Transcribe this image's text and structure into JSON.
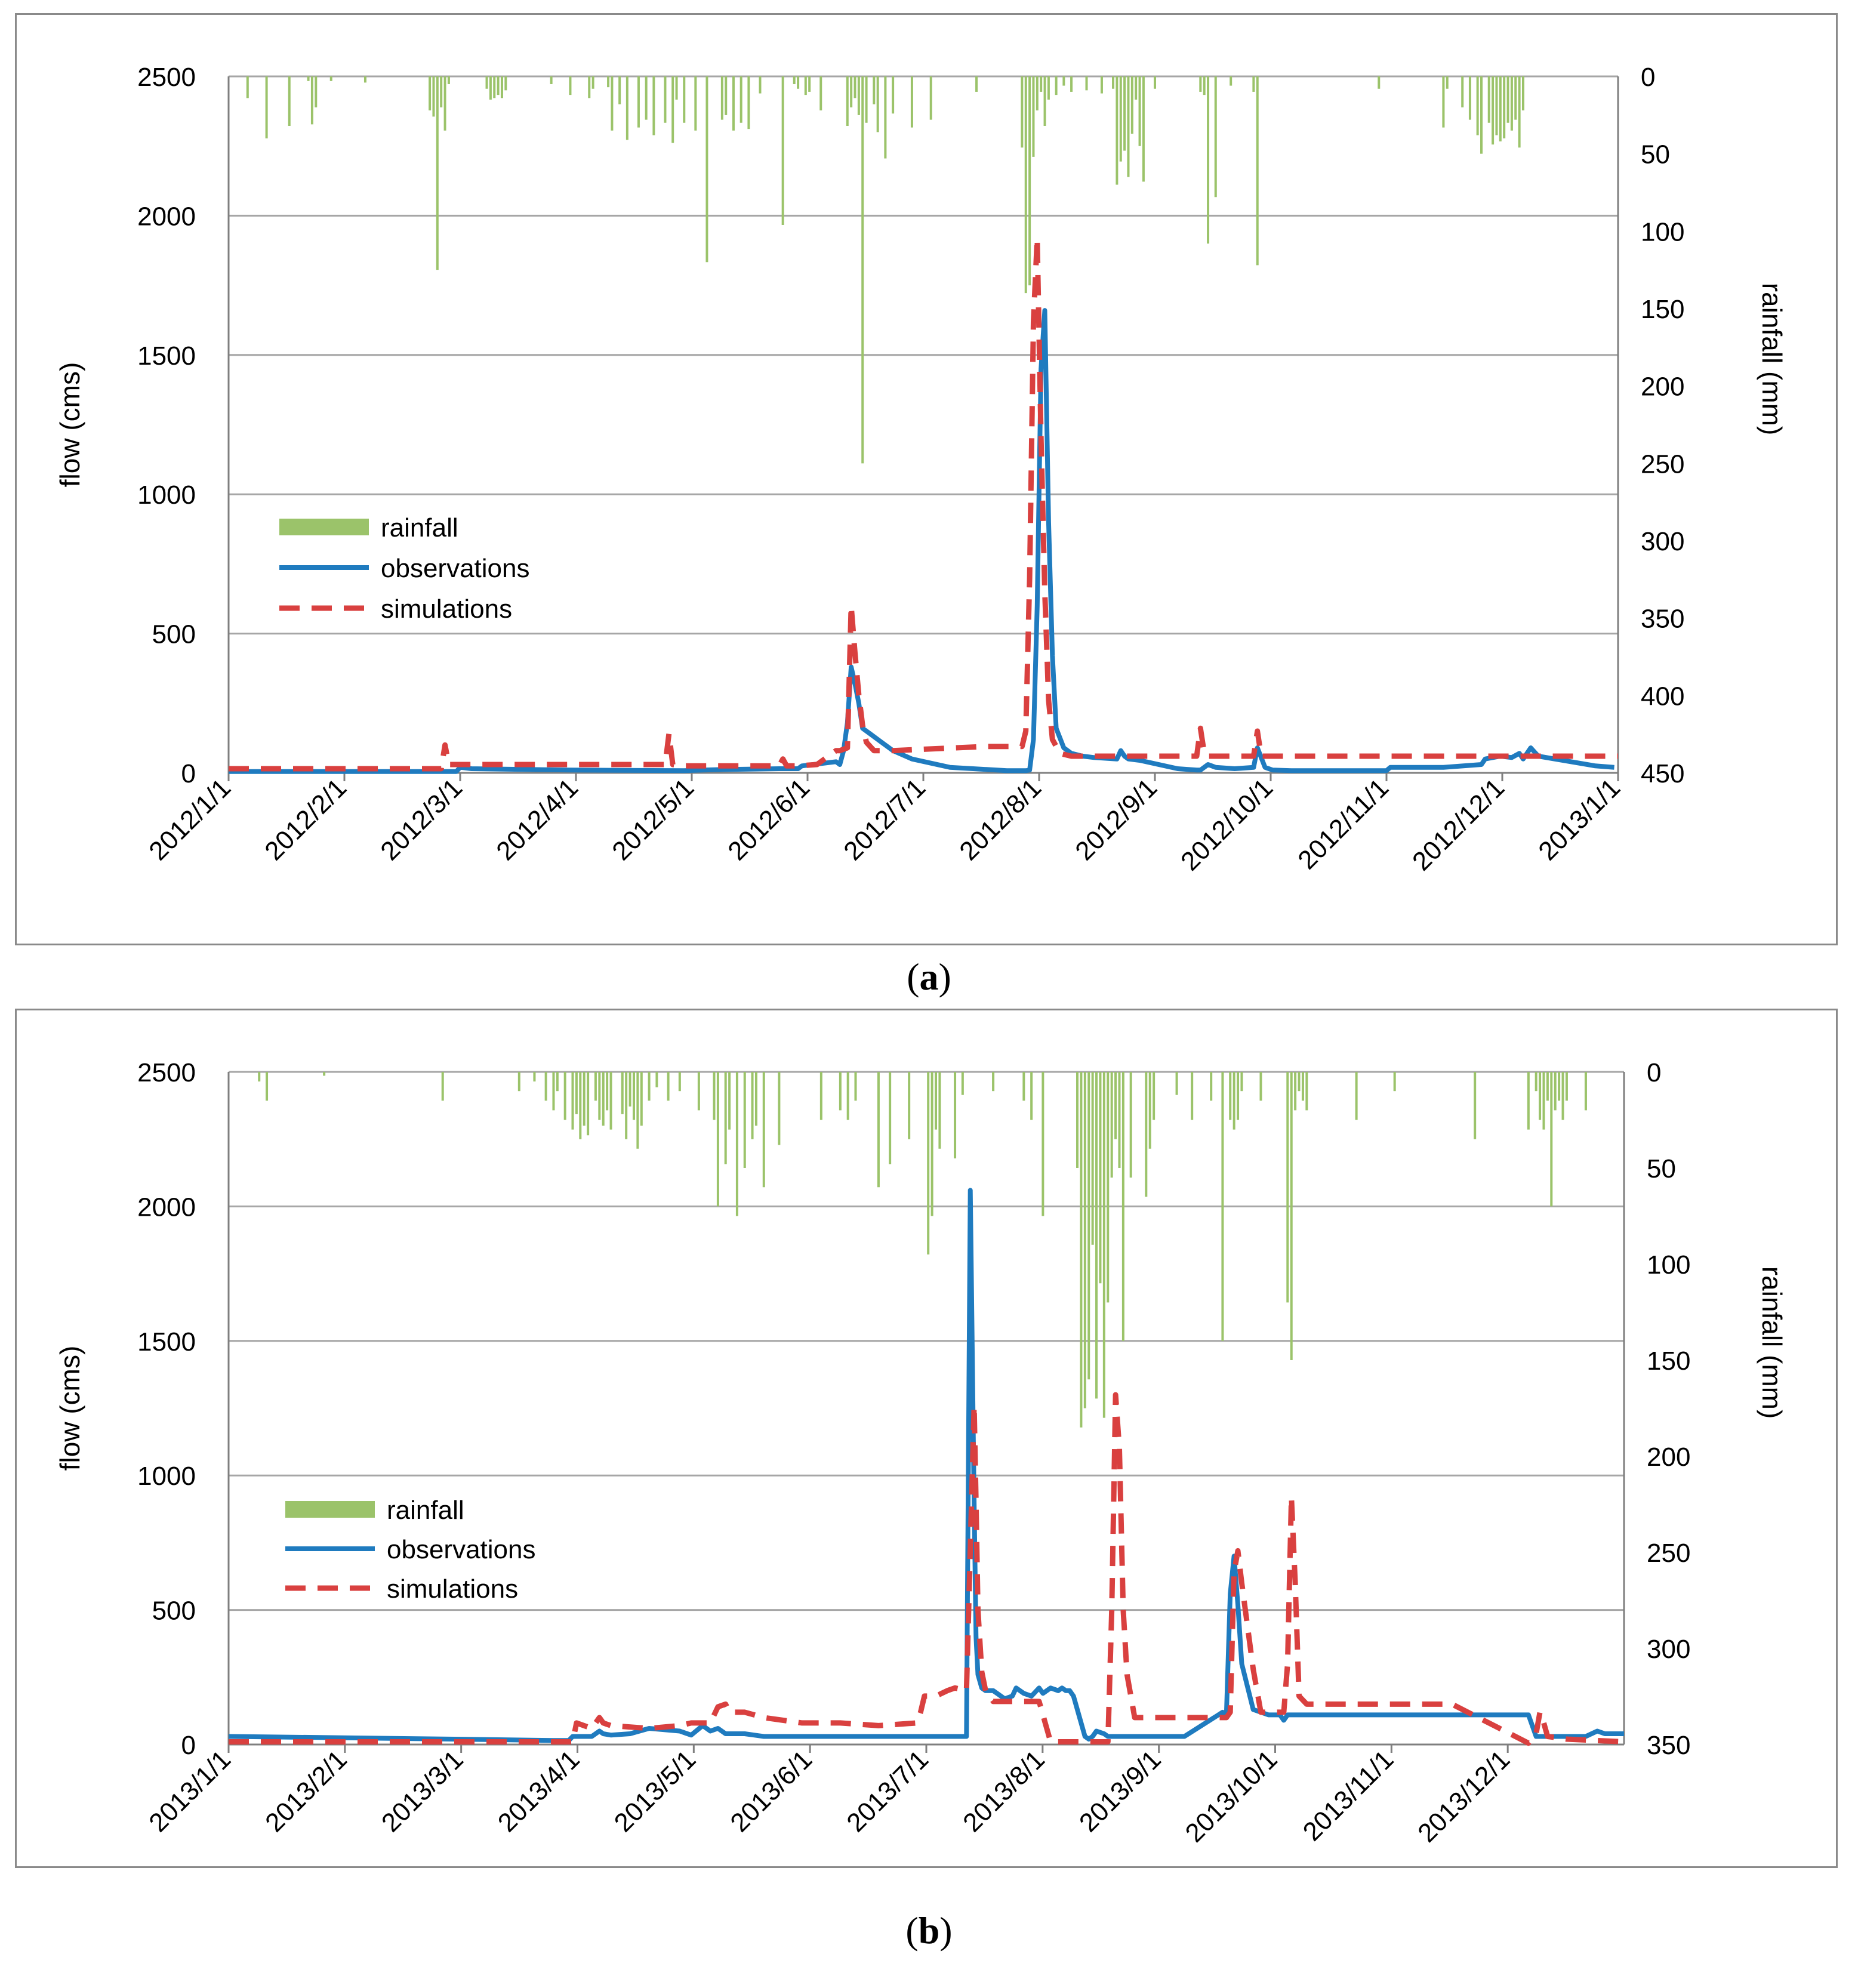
{
  "colors": {
    "rainfall": "#9bc36a",
    "observations": "#1f7bbf",
    "simulations": "#d9403f",
    "grid": "#a6a6a6",
    "axis": "#7f7f7f"
  },
  "chart_data": [
    {
      "type": "line",
      "panel": "a",
      "caption_open": "(",
      "caption_letter": "a",
      "caption_close": ")",
      "ylabel": "flow (cms)",
      "y2label": "rainfall (mm)",
      "ylim": [
        0,
        2500
      ],
      "y2lim": [
        0,
        450
      ],
      "yticks": [
        "0",
        "500",
        "1000",
        "1500",
        "2000",
        "2500"
      ],
      "y2ticks": [
        "0",
        "50",
        "100",
        "150",
        "200",
        "250",
        "300",
        "350",
        "400",
        "450"
      ],
      "xlim_days": [
        0,
        366
      ],
      "xticks": [
        "2012/1/1",
        "2012/2/1",
        "2012/3/1",
        "2012/4/1",
        "2012/5/1",
        "2012/6/1",
        "2012/7/1",
        "2012/8/1",
        "2012/9/1",
        "2012/10/1",
        "2012/11/1",
        "2012/12/1",
        "2013/1/1"
      ],
      "legend": [
        "rainfall",
        "observations",
        "simulations"
      ],
      "legend_position": "middle-left",
      "rainfall": {
        "day": [
          5,
          10,
          16,
          21,
          22,
          23,
          27,
          36,
          53,
          54,
          55,
          56,
          57,
          58,
          68,
          69,
          70,
          71,
          72,
          73,
          85,
          90,
          95,
          96,
          100,
          101,
          103,
          105,
          108,
          110,
          112,
          115,
          117,
          118,
          120,
          123,
          126,
          130,
          131,
          133,
          135,
          137,
          140,
          146,
          149,
          150,
          152,
          153,
          156,
          163,
          164,
          165,
          166,
          167,
          168,
          170,
          171,
          173,
          175,
          180,
          185,
          197,
          209,
          210,
          211,
          212,
          213,
          214,
          215,
          216,
          218,
          220,
          222,
          226,
          230,
          233,
          234,
          235,
          236,
          237,
          238,
          239,
          240,
          241,
          244,
          256,
          257,
          258,
          260,
          264,
          270,
          271,
          303,
          320,
          321,
          325,
          327,
          329,
          330,
          332,
          333,
          334,
          335,
          336,
          337,
          338,
          339,
          340,
          341
        ],
        "mm": [
          14,
          40,
          32,
          3,
          31,
          20,
          3,
          4,
          22,
          26,
          125,
          20,
          35,
          5,
          8,
          15,
          14,
          12,
          14,
          9,
          5,
          12,
          14,
          8,
          7,
          35,
          18,
          41,
          33,
          28,
          38,
          30,
          43,
          15,
          30,
          35,
          120,
          28,
          25,
          35,
          30,
          34,
          11,
          96,
          5,
          8,
          12,
          10,
          22,
          32,
          20,
          14,
          25,
          250,
          30,
          18,
          36,
          53,
          24,
          33,
          28,
          10,
          46,
          140,
          135,
          52,
          22,
          10,
          32,
          15,
          12,
          6,
          10,
          9,
          11,
          8,
          70,
          55,
          48,
          65,
          37,
          15,
          45,
          68,
          8,
          10,
          12,
          108,
          78,
          6,
          10,
          122,
          8,
          33,
          8,
          20,
          28,
          38,
          50,
          30,
          44,
          38,
          42,
          40,
          30,
          35,
          28,
          46,
          22
        ],
        "note": "bars hang down from the top axis (inverted rainfall scale)"
      },
      "series": [
        {
          "name": "observations",
          "x": [
            0,
            30,
            60,
            61,
            64,
            90,
            120,
            125,
            130,
            145,
            150,
            151,
            160,
            161,
            162,
            163,
            164,
            165,
            166,
            167,
            169,
            172,
            175,
            180,
            190,
            205,
            210,
            211,
            212,
            213,
            214,
            215,
            216,
            217,
            218,
            220,
            222,
            225,
            228,
            234,
            235,
            236,
            237,
            240,
            245,
            250,
            255,
            256,
            258,
            260,
            265,
            270,
            271,
            273,
            275,
            280,
            300,
            305,
            306,
            320,
            330,
            331,
            335,
            338,
            340,
            341,
            343,
            345,
            360,
            365
          ],
          "y": [
            5,
            5,
            5,
            20,
            15,
            10,
            8,
            10,
            12,
            15,
            15,
            25,
            40,
            30,
            80,
            180,
            380,
            320,
            250,
            160,
            140,
            110,
            80,
            50,
            20,
            8,
            8,
            10,
            120,
            600,
            1450,
            1660,
            900,
            420,
            160,
            90,
            70,
            60,
            55,
            50,
            80,
            60,
            50,
            45,
            30,
            15,
            10,
            10,
            30,
            20,
            15,
            20,
            90,
            20,
            10,
            8,
            8,
            8,
            20,
            20,
            30,
            50,
            60,
            55,
            70,
            50,
            90,
            60,
            25,
            20
          ]
        },
        {
          "name": "simulations",
          "x": [
            0,
            30,
            56,
            57,
            58,
            60,
            90,
            115,
            116,
            117,
            120,
            145,
            146,
            147,
            150,
            155,
            160,
            161,
            163,
            164,
            165,
            166,
            167,
            168,
            170,
            175,
            200,
            209,
            210,
            211,
            212,
            213,
            214,
            215,
            216,
            217,
            219,
            222,
            232,
            240,
            255,
            256,
            257,
            258,
            260,
            270,
            271,
            272,
            274,
            290,
            300,
            320,
            330,
            340,
            345,
            366
          ],
          "y": [
            15,
            15,
            15,
            100,
            30,
            30,
            30,
            30,
            140,
            30,
            25,
            25,
            50,
            25,
            25,
            30,
            80,
            80,
            90,
            600,
            430,
            280,
            170,
            110,
            80,
            80,
            95,
            95,
            150,
            700,
            1620,
            1920,
            1200,
            650,
            260,
            120,
            70,
            60,
            60,
            60,
            60,
            160,
            70,
            60,
            60,
            60,
            150,
            60,
            60,
            60,
            60,
            60,
            60,
            60,
            60,
            60
          ]
        }
      ]
    },
    {
      "type": "line",
      "panel": "b",
      "caption_open": "(",
      "caption_letter": "b",
      "caption_close": ")",
      "ylabel": "flow (cms)",
      "y2label": "rainfall (mm)",
      "ylim": [
        0,
        2500
      ],
      "y2lim": [
        0,
        350
      ],
      "yticks": [
        "0",
        "500",
        "1000",
        "1500",
        "2000",
        "2500"
      ],
      "y2ticks": [
        "0",
        "50",
        "100",
        "150",
        "200",
        "250",
        "300",
        "350"
      ],
      "xlim_days": [
        0,
        365
      ],
      "xticks": [
        "2013/1/1",
        "2013/2/1",
        "2013/3/1",
        "2013/4/1",
        "2013/5/1",
        "2013/6/1",
        "2013/7/1",
        "2013/8/1",
        "2013/9/1",
        "2013/10/1",
        "2013/11/1",
        "2013/12/1"
      ],
      "legend": [
        "rainfall",
        "observations",
        "simulations"
      ],
      "legend_position": "middle-left",
      "rainfall": {
        "day": [
          8,
          10,
          25,
          56,
          76,
          80,
          83,
          85,
          86,
          88,
          90,
          91,
          92,
          93,
          94,
          96,
          97,
          98,
          99,
          100,
          103,
          104,
          105,
          106,
          107,
          108,
          110,
          112,
          115,
          118,
          123,
          127,
          128,
          130,
          131,
          133,
          135,
          137,
          138,
          140,
          144,
          155,
          160,
          162,
          164,
          170,
          173,
          178,
          183,
          184,
          185,
          186,
          190,
          192,
          200,
          208,
          210,
          213,
          222,
          223,
          224,
          225,
          226,
          227,
          228,
          229,
          230,
          231,
          232,
          233,
          234,
          236,
          240,
          241,
          242,
          248,
          252,
          257,
          260,
          262,
          263,
          264,
          265,
          270,
          277,
          278,
          279,
          280,
          281,
          282,
          295,
          305,
          326,
          340,
          342,
          343,
          344,
          345,
          346,
          347,
          348,
          349,
          350,
          355
        ],
        "mm": [
          5,
          15,
          2,
          15,
          10,
          5,
          15,
          20,
          10,
          25,
          30,
          22,
          35,
          28,
          33,
          15,
          25,
          28,
          20,
          30,
          22,
          35,
          18,
          25,
          40,
          28,
          15,
          8,
          15,
          10,
          20,
          25,
          70,
          48,
          30,
          75,
          50,
          35,
          28,
          60,
          38,
          25,
          20,
          25,
          15,
          60,
          48,
          35,
          95,
          75,
          30,
          40,
          45,
          12,
          10,
          15,
          25,
          75,
          50,
          185,
          175,
          160,
          90,
          170,
          110,
          180,
          120,
          55,
          35,
          50,
          140,
          55,
          65,
          40,
          25,
          12,
          25,
          15,
          140,
          25,
          30,
          25,
          10,
          15,
          120,
          150,
          20,
          10,
          15,
          20,
          25,
          10,
          35,
          30,
          10,
          25,
          30,
          15,
          70,
          20,
          15,
          25,
          15,
          20
        ],
        "note": "bars hang down from the top axis (inverted rainfall scale)"
      },
      "series": [
        {
          "name": "observations",
          "x": [
            0,
            30,
            59,
            85,
            89,
            90,
            92,
            93,
            95,
            96,
            97,
            98,
            100,
            105,
            110,
            118,
            121,
            124,
            126,
            128,
            130,
            135,
            140,
            150,
            160,
            170,
            177,
            180,
            182,
            193,
            194,
            195,
            195.5,
            196,
            197,
            198,
            200,
            201,
            203,
            205,
            206,
            208,
            210,
            212,
            213,
            215,
            217,
            218,
            219,
            220,
            221,
            224,
            225,
            226,
            227,
            229,
            230,
            234,
            240,
            250,
            260,
            261,
            262,
            263,
            264,
            265,
            268,
            272,
            274,
            275,
            276,
            277,
            279,
            280,
            290,
            299,
            301,
            305,
            320,
            340,
            342,
            345,
            350,
            355,
            358,
            360,
            365
          ],
          "y": [
            30,
            25,
            20,
            15,
            15,
            30,
            30,
            30,
            30,
            40,
            50,
            40,
            35,
            40,
            60,
            50,
            35,
            70,
            50,
            60,
            40,
            40,
            30,
            30,
            30,
            30,
            30,
            30,
            30,
            30,
            2060,
            900,
            400,
            260,
            210,
            200,
            200,
            190,
            170,
            180,
            210,
            190,
            180,
            210,
            190,
            210,
            200,
            210,
            200,
            200,
            180,
            30,
            20,
            30,
            50,
            40,
            30,
            30,
            30,
            30,
            120,
            110,
            560,
            700,
            520,
            300,
            130,
            110,
            110,
            110,
            90,
            110,
            110,
            110,
            110,
            110,
            110,
            110,
            110,
            110,
            30,
            30,
            30,
            30,
            50,
            40,
            40
          ]
        },
        {
          "name": "simulations",
          "x": [
            0,
            30,
            59,
            88,
            90,
            91,
            95,
            96,
            97,
            98,
            100,
            110,
            118,
            121,
            126,
            128,
            130,
            131,
            135,
            140,
            150,
            160,
            170,
            180,
            181,
            182,
            185,
            188,
            190,
            193,
            195,
            195.5,
            196,
            197,
            198,
            200,
            205,
            210,
            212,
            213,
            215,
            220,
            225,
            228,
            230,
            231,
            232,
            233,
            234,
            235,
            237,
            238,
            240,
            245,
            250,
            260,
            261,
            262,
            263,
            264,
            265,
            268,
            270,
            276,
            277,
            278,
            279,
            280,
            282,
            290,
            300,
            305,
            306,
            320,
            340,
            342,
            343,
            344,
            345,
            350,
            365
          ],
          "y": [
            10,
            10,
            10,
            10,
            10,
            80,
            60,
            80,
            100,
            80,
            70,
            60,
            70,
            80,
            80,
            140,
            150,
            120,
            120,
            100,
            80,
            80,
            70,
            80,
            120,
            180,
            180,
            200,
            210,
            200,
            1260,
            900,
            500,
            270,
            200,
            160,
            160,
            160,
            160,
            110,
            10,
            10,
            10,
            10,
            10,
            500,
            1300,
            1100,
            500,
            260,
            100,
            100,
            100,
            100,
            100,
            100,
            100,
            120,
            640,
            720,
            600,
            280,
            120,
            120,
            300,
            920,
            600,
            180,
            150,
            150,
            150,
            150,
            150,
            150,
            5,
            40,
            120,
            80,
            30,
            20,
            10
          ]
        }
      ]
    }
  ]
}
